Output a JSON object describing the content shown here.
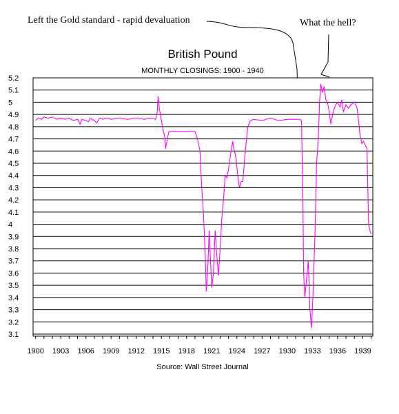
{
  "annotations": {
    "left_gold": "Left the Gold standard - rapid devaluation",
    "what_hell": "What the hell?"
  },
  "chart_data": {
    "type": "line",
    "title": "British Pound",
    "subtitle": "MONTHLY CLOSINGS: 1900 - 1940",
    "source": "Source: Wall Street Journal",
    "xlabel": "",
    "ylabel": "",
    "xlim": [
      1899.7,
      1940.2
    ],
    "ylim": [
      3.1,
      5.2
    ],
    "yticks": [
      "5.2",
      "5.1",
      "5",
      "4.9",
      "4.8",
      "4.7",
      "4.6",
      "4.5",
      "4.4",
      "4.3",
      "4.2",
      "4.1",
      "4",
      "3.9",
      "3.8",
      "3.7",
      "3.6",
      "3.5",
      "3.4",
      "3.3",
      "3.2",
      "3.1"
    ],
    "xticks": [
      "1900",
      "1903",
      "1906",
      "1909",
      "1912",
      "1915",
      "1918",
      "1921",
      "1924",
      "1927",
      "1930",
      "1933",
      "1936",
      "1939"
    ],
    "grid": "horizontal",
    "color": "#ff00ff",
    "series": [
      {
        "points": [
          [
            1900.0,
            4.85
          ],
          [
            1900.3,
            4.87
          ],
          [
            1900.7,
            4.86
          ],
          [
            1901.0,
            4.88
          ],
          [
            1901.5,
            4.87
          ],
          [
            1902.0,
            4.88
          ],
          [
            1902.5,
            4.86
          ],
          [
            1903.0,
            4.87
          ],
          [
            1903.5,
            4.86
          ],
          [
            1904.0,
            4.87
          ],
          [
            1904.5,
            4.85
          ],
          [
            1905.0,
            4.86
          ],
          [
            1905.3,
            4.82
          ],
          [
            1905.5,
            4.86
          ],
          [
            1906.0,
            4.85
          ],
          [
            1906.3,
            4.84
          ],
          [
            1906.5,
            4.87
          ],
          [
            1907.0,
            4.85
          ],
          [
            1907.3,
            4.83
          ],
          [
            1907.6,
            4.87
          ],
          [
            1908.0,
            4.86
          ],
          [
            1908.5,
            4.87
          ],
          [
            1909.0,
            4.86
          ],
          [
            1910.0,
            4.87
          ],
          [
            1911.0,
            4.86
          ],
          [
            1912.0,
            4.87
          ],
          [
            1913.0,
            4.86
          ],
          [
            1913.5,
            4.87
          ],
          [
            1914.0,
            4.87
          ],
          [
            1914.3,
            4.86
          ],
          [
            1914.5,
            4.92
          ],
          [
            1914.6,
            5.05
          ],
          [
            1914.75,
            4.95
          ],
          [
            1915.0,
            4.85
          ],
          [
            1915.2,
            4.77
          ],
          [
            1915.4,
            4.72
          ],
          [
            1915.5,
            4.62
          ],
          [
            1915.7,
            4.7
          ],
          [
            1915.9,
            4.76
          ],
          [
            1916.0,
            4.76
          ],
          [
            1917.0,
            4.76
          ],
          [
            1918.0,
            4.76
          ],
          [
            1919.0,
            4.76
          ],
          [
            1919.3,
            4.7
          ],
          [
            1919.6,
            4.6
          ],
          [
            1919.8,
            4.3
          ],
          [
            1920.0,
            4.1
          ],
          [
            1920.2,
            3.8
          ],
          [
            1920.35,
            3.45
          ],
          [
            1920.5,
            3.6
          ],
          [
            1920.7,
            3.95
          ],
          [
            1920.85,
            3.7
          ],
          [
            1921.0,
            3.48
          ],
          [
            1921.2,
            3.6
          ],
          [
            1921.4,
            3.95
          ],
          [
            1921.6,
            3.75
          ],
          [
            1921.8,
            3.58
          ],
          [
            1922.0,
            3.8
          ],
          [
            1922.2,
            4.05
          ],
          [
            1922.4,
            4.2
          ],
          [
            1922.6,
            4.4
          ],
          [
            1922.8,
            4.38
          ],
          [
            1923.0,
            4.45
          ],
          [
            1923.3,
            4.6
          ],
          [
            1923.5,
            4.68
          ],
          [
            1923.7,
            4.6
          ],
          [
            1923.9,
            4.54
          ],
          [
            1924.1,
            4.4
          ],
          [
            1924.3,
            4.3
          ],
          [
            1924.5,
            4.35
          ],
          [
            1924.7,
            4.35
          ],
          [
            1925.0,
            4.6
          ],
          [
            1925.3,
            4.8
          ],
          [
            1925.6,
            4.85
          ],
          [
            1926.0,
            4.86
          ],
          [
            1927.0,
            4.85
          ],
          [
            1928.0,
            4.87
          ],
          [
            1929.0,
            4.85
          ],
          [
            1930.0,
            4.86
          ],
          [
            1931.0,
            4.86
          ],
          [
            1931.5,
            4.86
          ],
          [
            1931.7,
            4.85
          ],
          [
            1931.85,
            4.3
          ],
          [
            1931.95,
            3.6
          ],
          [
            1932.1,
            3.4
          ],
          [
            1932.3,
            3.55
          ],
          [
            1932.5,
            3.7
          ],
          [
            1932.7,
            3.3
          ],
          [
            1932.9,
            3.15
          ],
          [
            1933.05,
            3.4
          ],
          [
            1933.3,
            3.9
          ],
          [
            1933.5,
            4.5
          ],
          [
            1933.7,
            4.7
          ],
          [
            1933.85,
            5.0
          ],
          [
            1934.0,
            5.15
          ],
          [
            1934.2,
            5.08
          ],
          [
            1934.4,
            5.13
          ],
          [
            1934.6,
            5.02
          ],
          [
            1934.8,
            5.0
          ],
          [
            1935.0,
            4.92
          ],
          [
            1935.2,
            4.82
          ],
          [
            1935.4,
            4.9
          ],
          [
            1935.6,
            4.95
          ],
          [
            1935.8,
            4.98
          ],
          [
            1936.0,
            5.0
          ],
          [
            1936.3,
            4.96
          ],
          [
            1936.5,
            5.02
          ],
          [
            1936.7,
            4.92
          ],
          [
            1937.0,
            4.98
          ],
          [
            1937.3,
            4.95
          ],
          [
            1937.6,
            4.98
          ],
          [
            1938.0,
            5.0
          ],
          [
            1938.3,
            4.96
          ],
          [
            1938.5,
            4.85
          ],
          [
            1938.7,
            4.72
          ],
          [
            1938.9,
            4.66
          ],
          [
            1939.1,
            4.68
          ],
          [
            1939.3,
            4.65
          ],
          [
            1939.5,
            4.62
          ],
          [
            1939.7,
            4.0
          ],
          [
            1939.85,
            3.95
          ],
          [
            1940.0,
            3.92
          ]
        ]
      }
    ]
  }
}
